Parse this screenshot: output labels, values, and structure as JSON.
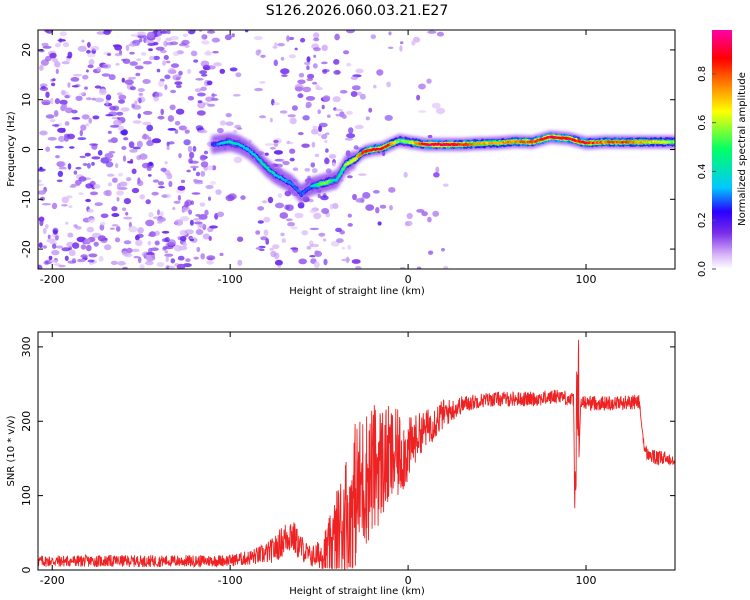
{
  "title": "S126.2026.060.03.21.E27",
  "chart_data": [
    {
      "type": "heatmap",
      "xlabel": "Height of straight line (km)",
      "ylabel": "Frequency (Hz)",
      "xlim": [
        -208,
        150
      ],
      "ylim": [
        -24,
        24
      ],
      "xticks": [
        -200,
        -100,
        0,
        100
      ],
      "xtick_labels": [
        "-200",
        "-100",
        "0",
        "100"
      ],
      "yticks": [
        -20,
        -10,
        0,
        10,
        20
      ],
      "ytick_labels": [
        "-20",
        "-10",
        "0",
        "10",
        "20"
      ],
      "colorbar": {
        "label": "Normalized spectral amplitude",
        "range": [
          0,
          0.98
        ],
        "ticks": [
          0,
          0.2,
          0.4,
          0.6,
          0.8
        ],
        "tick_labels": [
          "0.0",
          "0.2",
          "0.4",
          "0.6",
          "0.8"
        ],
        "colormap": [
          "#ffffff",
          "#d8b4f8",
          "#7a2de8",
          "#2a00ff",
          "#00c8ff",
          "#00ff66",
          "#ffff00",
          "#ff7700",
          "#ff0000",
          "#ff00aa"
        ]
      },
      "ridge": {
        "x": [
          -110,
          -100,
          -95,
          -90,
          -85,
          -80,
          -75,
          -70,
          -65,
          -60,
          -55,
          -50,
          -45,
          -40,
          -35,
          -30,
          -25,
          -20,
          -15,
          -10,
          -5,
          0,
          10,
          20,
          30,
          40,
          50,
          60,
          70,
          80,
          90,
          100,
          110,
          120,
          130,
          140,
          150
        ],
        "y": [
          1,
          1.5,
          1,
          0,
          -1.5,
          -3.5,
          -5,
          -6,
          -7,
          -9,
          -7.5,
          -7,
          -6.5,
          -6,
          -3,
          -2,
          -0.5,
          0,
          0.2,
          1,
          1.8,
          1.5,
          1,
          1,
          1,
          1.2,
          1.3,
          1.6,
          1.5,
          2.5,
          2.2,
          1.3,
          1.5,
          1.5,
          1.5,
          1.5,
          1.5
        ],
        "peak_amplitude": [
          0.25,
          0.45,
          0.4,
          0.35,
          0.4,
          0.45,
          0.4,
          0.35,
          0.3,
          0.3,
          0.3,
          0.55,
          0.6,
          0.4,
          0.6,
          0.7,
          0.85,
          0.9,
          0.9,
          0.85,
          0.55,
          0.6,
          0.95,
          0.95,
          0.9,
          0.75,
          0.75,
          0.8,
          0.85,
          0.98,
          0.9,
          0.9,
          0.8,
          0.85,
          0.75,
          0.7,
          0.6
        ]
      }
    },
    {
      "type": "line",
      "xlabel": "Height of straight line (km)",
      "ylabel": "SNR (10 * v/v)",
      "xlim": [
        -208,
        150
      ],
      "ylim": [
        0,
        320
      ],
      "xticks": [
        -200,
        -100,
        0,
        100
      ],
      "xtick_labels": [
        "-200",
        "-100",
        "0",
        "100"
      ],
      "yticks": [
        0,
        100,
        200,
        300
      ],
      "ytick_labels": [
        "0",
        "100",
        "200",
        "300"
      ],
      "series": [
        {
          "name": "SNR",
          "color": "#ee2222",
          "x": [
            -208,
            -180,
            -150,
            -120,
            -100,
            -90,
            -80,
            -75,
            -70,
            -66,
            -62,
            -58,
            -55,
            -50,
            -45,
            -40,
            -35,
            -30,
            -25,
            -20,
            -15,
            -10,
            -5,
            0,
            5,
            10,
            15,
            20,
            25,
            30,
            40,
            50,
            60,
            70,
            80,
            85,
            90,
            93,
            94,
            95,
            96,
            97,
            100,
            110,
            120,
            130,
            131,
            133,
            135,
            140,
            150
          ],
          "y": [
            12,
            12,
            12,
            12,
            13,
            16,
            22,
            28,
            40,
            50,
            35,
            25,
            18,
            20,
            25,
            40,
            70,
            100,
            120,
            135,
            145,
            150,
            155,
            160,
            180,
            190,
            200,
            210,
            215,
            222,
            228,
            230,
            230,
            230,
            232,
            235,
            230,
            228,
            80,
            310,
            150,
            225,
            225,
            224,
            225,
            226,
            200,
            160,
            155,
            150,
            150
          ],
          "noise": [
            8,
            8,
            8,
            8,
            8,
            10,
            14,
            18,
            22,
            26,
            20,
            16,
            14,
            20,
            40,
            70,
            90,
            100,
            95,
            90,
            80,
            70,
            60,
            45,
            30,
            25,
            25,
            20,
            15,
            12,
            10,
            10,
            10,
            10,
            10,
            10,
            10,
            10,
            0,
            0,
            0,
            10,
            10,
            10,
            10,
            10,
            0,
            10,
            10,
            10,
            10
          ]
        }
      ]
    }
  ]
}
